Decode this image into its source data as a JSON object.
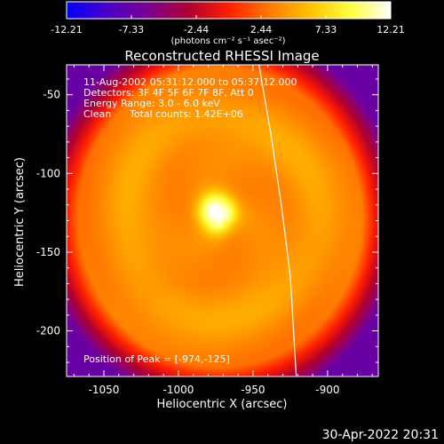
{
  "chart_data": {
    "type": "heatmap",
    "title": "Reconstructed RHESSI Image",
    "xlabel": "Heliocentric X (arcsec)",
    "ylabel": "Heliocentric Y (arcsec)",
    "xlim": [
      -1075,
      -866
    ],
    "ylim": [
      -229,
      -31
    ],
    "xticks": [
      -1050,
      -1000,
      -950,
      -900
    ],
    "yticks": [
      -200,
      -150,
      -100,
      -50
    ],
    "xtick_labels": [
      "-1050",
      "-1000",
      "-950",
      "-900"
    ],
    "ytick_labels": [
      "-200",
      "-150",
      "-100",
      "-50"
    ],
    "colorbar": {
      "range": [
        -12.21,
        12.21
      ],
      "tick_values": [
        -12.21,
        -7.33,
        -2.44,
        2.44,
        7.33,
        12.21
      ],
      "tick_labels": [
        "-12.21",
        "-7.33",
        "-2.44",
        "2.44",
        "7.33",
        "12.21"
      ],
      "units_label": "(photons cm⁻² s⁻¹ asec⁻²)",
      "colormap": [
        "#0000ff",
        "#4a00c8",
        "#7a0090",
        "#b00030",
        "#ff1e00",
        "#ff7a00",
        "#ffc000",
        "#ffff40",
        "#ffffff"
      ]
    },
    "image": {
      "peak_value": 12.21,
      "peak_xy": [
        -974,
        -125
      ],
      "ring_center": [
        -972,
        -128
      ],
      "ring_radius": 65,
      "ring_width": 16,
      "ring_level": 5.6,
      "core_radius": 13,
      "inner_level": 3.9,
      "outer_level": 3.0,
      "corner_level": -7.2,
      "fade_start": 95,
      "fade_width": 26
    },
    "limb": {
      "points": [
        [
          -946,
          -31
        ],
        [
          -938,
          -75
        ],
        [
          -931,
          -120
        ],
        [
          -925,
          -165
        ],
        [
          -921,
          -229
        ]
      ],
      "color": "#ffffff"
    },
    "annotations": {
      "line1": "11-Aug-2002 05:31:12.000 to 05:37:12.000",
      "line2": "Detectors: 3F 4F 5F 6F 7F 8F, Att 0",
      "line3": "Energy Range: 3.0 - 6.0 keV",
      "line4_left": "Clean",
      "line4_right": "Total counts: 1.42E+06",
      "peak_position": "Position of Peak = [-974,-125]"
    }
  },
  "footer": {
    "timestamp": "30-Apr-2022 20:31"
  }
}
